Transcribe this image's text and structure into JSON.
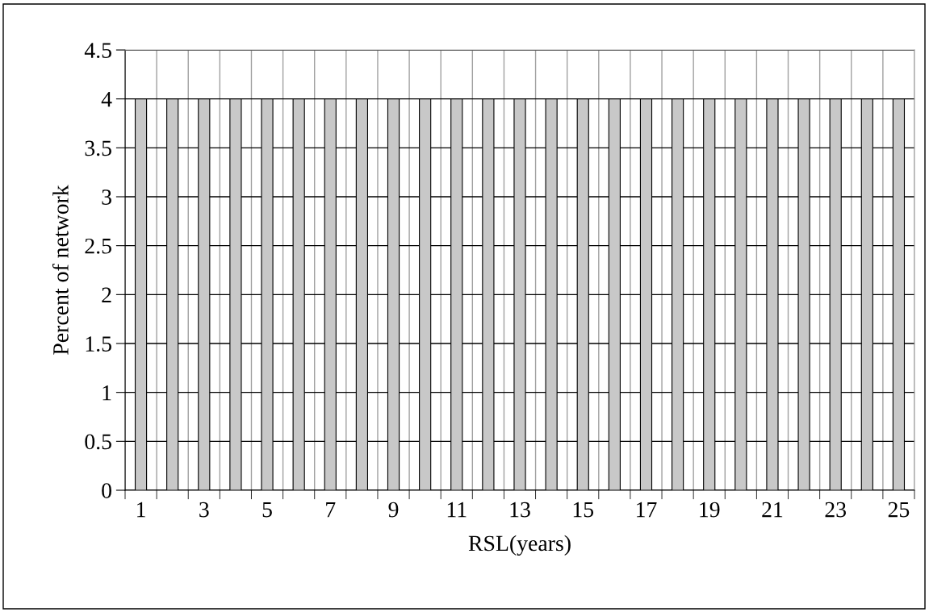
{
  "chart_data": {
    "type": "bar",
    "xlabel": "RSL(years)",
    "ylabel": "Percent of network",
    "categories": [
      "1",
      null,
      "3",
      null,
      "5",
      null,
      "7",
      null,
      "9",
      null,
      "11",
      null,
      "13",
      null,
      "15",
      null,
      "17",
      null,
      "19",
      null,
      "21",
      null,
      "23",
      null,
      "25"
    ],
    "values": [
      4,
      4,
      4,
      4,
      4,
      4,
      4,
      4,
      4,
      4,
      4,
      4,
      4,
      4,
      4,
      4,
      4,
      4,
      4,
      4,
      4,
      4,
      4,
      4,
      4
    ],
    "color": "#c8c8c8",
    "ylim": [
      0,
      4.5
    ],
    "yticks": [
      0,
      0.5,
      1,
      1.5,
      2,
      2.5,
      3,
      3.5,
      4,
      4.5
    ],
    "grid": true,
    "legend": false
  }
}
